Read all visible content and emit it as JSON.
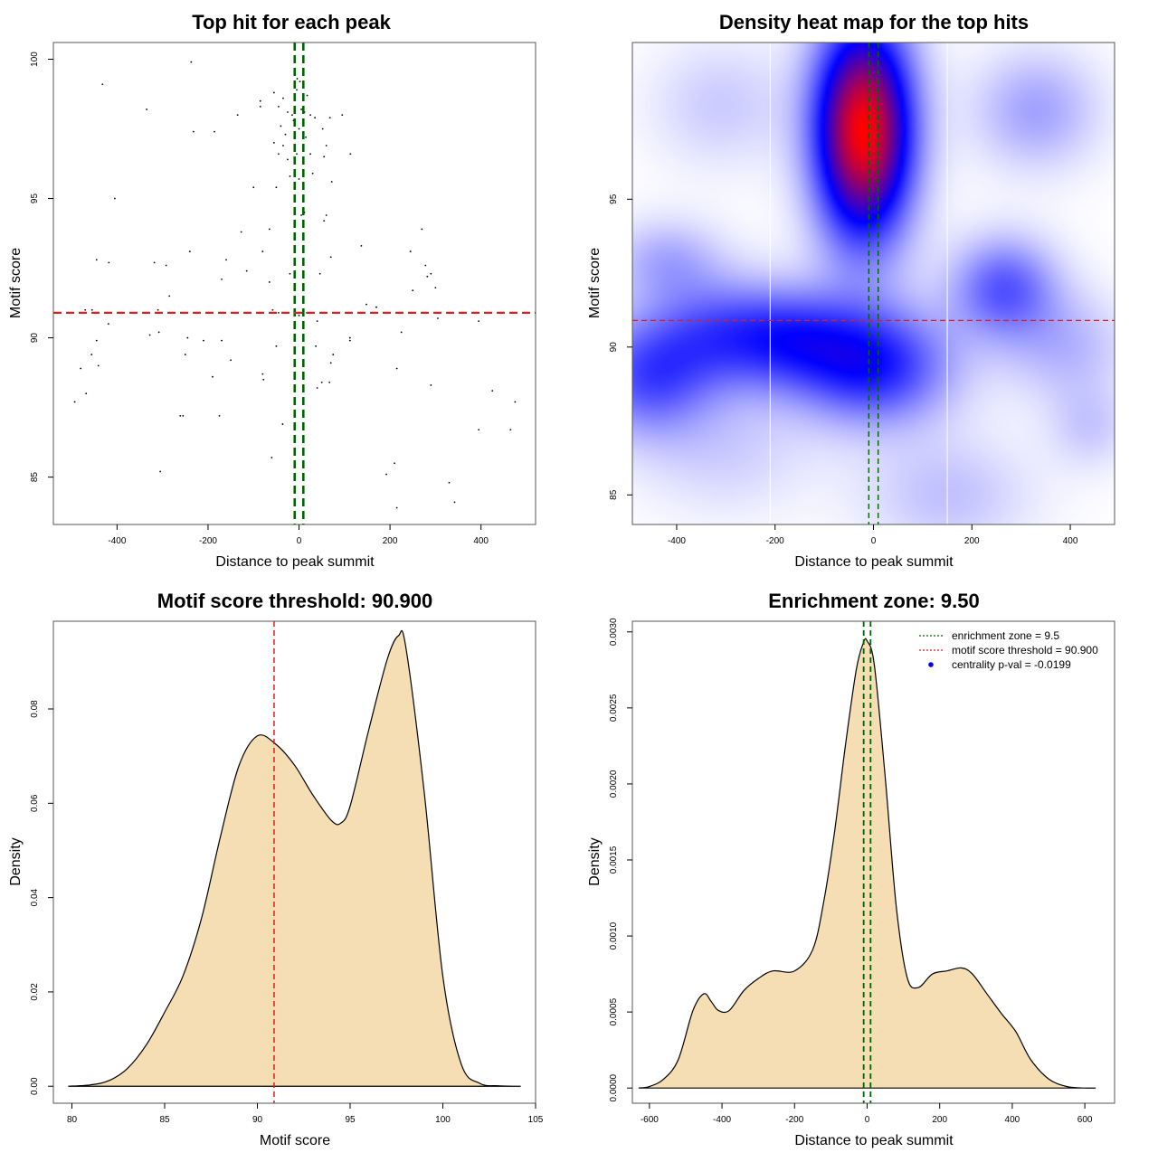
{
  "chart_data": [
    {
      "type": "scatter",
      "title": "Top hit for each peak",
      "xlabel": "Distance to peak summit",
      "ylabel": "Motif score",
      "xlim": [
        -540,
        520
      ],
      "ylim": [
        83.3,
        100.6
      ],
      "xticks": [
        -400,
        -200,
        0,
        200,
        400
      ],
      "yticks": [
        85,
        90,
        95,
        100
      ],
      "xtick_labels": [
        "-400",
        "-200",
        "0",
        "200",
        "400"
      ],
      "ytick_labels": [
        "85",
        "90",
        "95",
        "100"
      ],
      "hlines": [
        {
          "y": 90.9,
          "color": "#e31a1c",
          "style": "dashed"
        }
      ],
      "vlines": [
        {
          "x": -9.5,
          "color": "#006400",
          "style": "dashed"
        },
        {
          "x": 9.5,
          "color": "#006400",
          "style": "dashed"
        }
      ],
      "points": [
        [
          -432,
          99.1
        ],
        [
          -237,
          99.9
        ],
        [
          -335,
          98.2
        ],
        [
          -232,
          97.4
        ],
        [
          -186,
          97.4
        ],
        [
          -135,
          98.0
        ],
        [
          -85,
          98.5
        ],
        [
          -85,
          98.3
        ],
        [
          -55,
          98.8
        ],
        [
          -45,
          98.3
        ],
        [
          -35,
          98.6
        ],
        [
          -25,
          98.1
        ],
        [
          -15,
          98.0
        ],
        [
          -5,
          98.9
        ],
        [
          5,
          98.2
        ],
        [
          12,
          98.1
        ],
        [
          18,
          98.7
        ],
        [
          25,
          98.0
        ],
        [
          35,
          97.9
        ],
        [
          -40,
          97.6
        ],
        [
          -30,
          97.3
        ],
        [
          -12,
          97.8
        ],
        [
          0,
          97.5
        ],
        [
          15,
          97.2
        ],
        [
          52,
          97.5
        ],
        [
          60,
          96.9
        ],
        [
          68,
          97.9
        ],
        [
          95,
          98.0
        ],
        [
          -55,
          97.0
        ],
        [
          -45,
          96.6
        ],
        [
          -35,
          96.9
        ],
        [
          -25,
          96.4
        ],
        [
          -5,
          96.6
        ],
        [
          10,
          96.3
        ],
        [
          25,
          96.6
        ],
        [
          55,
          96.5
        ],
        [
          113,
          96.6
        ],
        [
          -20,
          95.8
        ],
        [
          0,
          95.7
        ],
        [
          30,
          95.9
        ],
        [
          72,
          95.6
        ],
        [
          -100,
          95.4
        ],
        [
          -50,
          95.4
        ],
        [
          -10,
          94.6
        ],
        [
          5,
          94.4
        ],
        [
          12,
          94.5
        ],
        [
          55,
          94.2
        ],
        [
          60,
          94.4
        ],
        [
          -405,
          95.0
        ],
        [
          -127,
          93.8
        ],
        [
          -65,
          93.9
        ],
        [
          -80,
          93.1
        ],
        [
          -240,
          93.1
        ],
        [
          137,
          93.3
        ],
        [
          -445,
          92.8
        ],
        [
          -418,
          92.7
        ],
        [
          -318,
          92.7
        ],
        [
          -292,
          92.6
        ],
        [
          -160,
          92.8
        ],
        [
          -115,
          92.4
        ],
        [
          -170,
          92.1
        ],
        [
          -20,
          92.3
        ],
        [
          -65,
          92.0
        ],
        [
          46,
          92.3
        ],
        [
          70,
          92.9
        ],
        [
          245,
          93.1
        ],
        [
          270,
          93.9
        ],
        [
          278,
          92.6
        ],
        [
          282,
          92.2
        ],
        [
          290,
          92.3
        ],
        [
          300,
          91.8
        ],
        [
          250,
          91.7
        ],
        [
          148,
          91.2
        ],
        [
          170,
          91.1
        ],
        [
          -285,
          91.5
        ],
        [
          -310,
          91.0
        ],
        [
          -58,
          91.0
        ],
        [
          -455,
          91.0
        ],
        [
          -470,
          91.0
        ],
        [
          -45,
          90.9
        ],
        [
          0,
          90.8
        ],
        [
          17,
          90.9
        ],
        [
          305,
          90.7
        ],
        [
          -419,
          90.5
        ],
        [
          40,
          90.6
        ],
        [
          395,
          90.6
        ],
        [
          -328,
          90.1
        ],
        [
          -308,
          90.2
        ],
        [
          -210,
          89.9
        ],
        [
          -245,
          90.0
        ],
        [
          -170,
          89.9
        ],
        [
          112,
          89.9
        ],
        [
          112,
          90.0
        ],
        [
          -445,
          89.9
        ],
        [
          -50,
          89.7
        ],
        [
          37,
          89.7
        ],
        [
          225,
          90.2
        ],
        [
          -456,
          89.4
        ],
        [
          -250,
          89.4
        ],
        [
          -150,
          89.2
        ],
        [
          75,
          89.4
        ],
        [
          70,
          89.1
        ],
        [
          -480,
          88.9
        ],
        [
          -441,
          89.0
        ],
        [
          -190,
          88.6
        ],
        [
          -80,
          88.7
        ],
        [
          -78,
          88.5
        ],
        [
          215,
          88.9
        ],
        [
          40,
          88.2
        ],
        [
          50,
          88.4
        ],
        [
          67,
          88.4
        ],
        [
          290,
          88.3
        ],
        [
          -468,
          88.0
        ],
        [
          -493,
          87.7
        ],
        [
          425,
          88.1
        ],
        [
          475,
          87.7
        ],
        [
          -261,
          87.2
        ],
        [
          -255,
          87.2
        ],
        [
          -175,
          87.2
        ],
        [
          -36,
          86.9
        ],
        [
          395,
          86.7
        ],
        [
          465,
          86.7
        ],
        [
          -60,
          85.7
        ],
        [
          -305,
          85.2
        ],
        [
          192,
          85.1
        ],
        [
          210,
          85.5
        ],
        [
          330,
          84.8
        ],
        [
          342,
          84.1
        ],
        [
          215,
          83.9
        ],
        [
          -4,
          99.3
        ],
        [
          2,
          99.2
        ]
      ]
    },
    {
      "type": "heatmap",
      "title": "Density heat map for the top hits",
      "xlabel": "Distance to peak summit",
      "ylabel": "Motif score",
      "xlim": [
        -490,
        490
      ],
      "ylim": [
        84.0,
        100.3
      ],
      "xticks": [
        -400,
        -200,
        0,
        200,
        400
      ],
      "yticks": [
        85,
        90,
        95
      ],
      "xtick_labels": [
        "-400",
        "-200",
        "0",
        "200",
        "400"
      ],
      "ytick_labels": [
        "85",
        "90",
        "95"
      ],
      "color_scale": [
        "#ffffff",
        "#0000ff",
        "#ff0000"
      ],
      "white_vlines": [
        -210,
        150
      ],
      "hlines": [
        {
          "y": 90.9,
          "color": "#e31a1c",
          "style": "dashed"
        }
      ],
      "vlines": [
        {
          "x": -9.5,
          "color": "#006400",
          "style": "dashed"
        },
        {
          "x": 9.5,
          "color": "#006400",
          "style": "dashed"
        }
      ],
      "density_blobs": [
        {
          "x": -20,
          "y": 97.3,
          "sx": 70,
          "sy": 2.6,
          "w": 1.0
        },
        {
          "x": 0,
          "y": 89.4,
          "sx": 110,
          "sy": 1.4,
          "w": 0.45
        },
        {
          "x": -460,
          "y": 89.0,
          "sx": 90,
          "sy": 1.4,
          "w": 0.33
        },
        {
          "x": -310,
          "y": 90.4,
          "sx": 100,
          "sy": 1.3,
          "w": 0.3
        },
        {
          "x": -160,
          "y": 90.3,
          "sx": 90,
          "sy": 1.2,
          "w": 0.28
        },
        {
          "x": 265,
          "y": 92.0,
          "sx": 75,
          "sy": 1.2,
          "w": 0.32
        },
        {
          "x": 330,
          "y": 98.0,
          "sx": 90,
          "sy": 1.4,
          "w": 0.18
        },
        {
          "x": -420,
          "y": 92.9,
          "sx": 80,
          "sy": 1.0,
          "w": 0.16
        },
        {
          "x": 390,
          "y": 90.0,
          "sx": 90,
          "sy": 1.3,
          "w": 0.14
        },
        {
          "x": 150,
          "y": 85.0,
          "sx": 120,
          "sy": 1.4,
          "w": 0.12
        },
        {
          "x": 440,
          "y": 87.3,
          "sx": 60,
          "sy": 1.0,
          "w": 0.1
        },
        {
          "x": -310,
          "y": 98.2,
          "sx": 100,
          "sy": 1.5,
          "w": 0.1
        },
        {
          "x": -300,
          "y": 86.5,
          "sx": 120,
          "sy": 1.5,
          "w": 0.09
        }
      ]
    },
    {
      "type": "area",
      "title": "Motif score threshold: 90.900",
      "xlabel": "Motif score",
      "ylabel": "Density",
      "xlim": [
        79,
        105
      ],
      "ylim": [
        -0.0036,
        0.0986
      ],
      "xticks": [
        80,
        85,
        90,
        95,
        100,
        105
      ],
      "yticks": [
        0.0,
        0.02,
        0.04,
        0.06,
        0.08
      ],
      "xtick_labels": [
        "80",
        "85",
        "90",
        "95",
        "100",
        "105"
      ],
      "ytick_labels": [
        "0.00",
        "0.02",
        "0.04",
        "0.06",
        "0.08"
      ],
      "fill": "#f5deb3",
      "vlines": [
        {
          "x": 90.9,
          "color": "#e31a1c",
          "style": "dashed"
        }
      ],
      "x": [
        79.8,
        81,
        82,
        83,
        84,
        85,
        86,
        87,
        88,
        89,
        90,
        91,
        92,
        93,
        94,
        94.5,
        95,
        96,
        97,
        97.6,
        98,
        99,
        100,
        101,
        102,
        103,
        104.2
      ],
      "y": [
        0.0,
        0.0003,
        0.0012,
        0.0038,
        0.0087,
        0.0157,
        0.0235,
        0.0358,
        0.0528,
        0.0679,
        0.0743,
        0.0725,
        0.0681,
        0.0617,
        0.0563,
        0.0558,
        0.0594,
        0.0755,
        0.0905,
        0.0955,
        0.0932,
        0.0622,
        0.0233,
        0.0046,
        0.0006,
        0.0001,
        0.0
      ]
    },
    {
      "type": "area",
      "title": "Enrichment zone: 9.50",
      "xlabel": "Distance to peak summit",
      "ylabel": "Density",
      "xlim": [
        -647,
        682
      ],
      "ylim": [
        -0.0001,
        0.00307
      ],
      "xticks": [
        -600,
        -400,
        -200,
        0,
        200,
        400,
        600
      ],
      "yticks": [
        0.0,
        0.0005,
        0.001,
        0.0015,
        0.002,
        0.0025,
        0.003
      ],
      "xtick_labels": [
        "-600",
        "-400",
        "-200",
        "0",
        "200",
        "400",
        "600"
      ],
      "ytick_labels": [
        "0.0000",
        "0.0005",
        "0.0010",
        "0.0015",
        "0.0020",
        "0.0025",
        "0.0030"
      ],
      "fill": "#f5deb3",
      "vlines": [
        {
          "x": -9.5,
          "color": "#006400",
          "style": "dashed"
        },
        {
          "x": 9.5,
          "color": "#006400",
          "style": "dashed"
        }
      ],
      "x": [
        -630,
        -600,
        -560,
        -520,
        -480,
        -450,
        -430,
        -410,
        -380,
        -340,
        -300,
        -260,
        -200,
        -150,
        -120,
        -90,
        -60,
        -30,
        -10,
        0,
        20,
        50,
        80,
        110,
        140,
        180,
        220,
        260,
        290,
        330,
        370,
        410,
        450,
        500,
        550,
        600,
        630
      ],
      "y": [
        0.0,
        1e-05,
        6e-05,
        0.00019,
        0.00051,
        0.00062,
        0.00057,
        0.00051,
        0.00051,
        0.00064,
        0.00072,
        0.00077,
        0.00077,
        0.00091,
        0.00122,
        0.00168,
        0.00225,
        0.00275,
        0.00293,
        0.00294,
        0.00278,
        0.00204,
        0.0012,
        0.00073,
        0.00066,
        0.00075,
        0.00077,
        0.00079,
        0.00075,
        0.00062,
        0.00049,
        0.00037,
        0.00019,
        6e-05,
        1e-05,
        0.0,
        0.0
      ],
      "legend": {
        "placement": "top-right",
        "entries": [
          {
            "label": "enrichment zone = 9.5",
            "color": "#006400",
            "style": "dotted-line"
          },
          {
            "label": "motif score threshold = 90.900",
            "color": "#e31a1c",
            "style": "dotted-line"
          },
          {
            "label": "centrality p-val = -0.0199",
            "color": "#0000ff",
            "style": "point"
          }
        ]
      }
    }
  ]
}
